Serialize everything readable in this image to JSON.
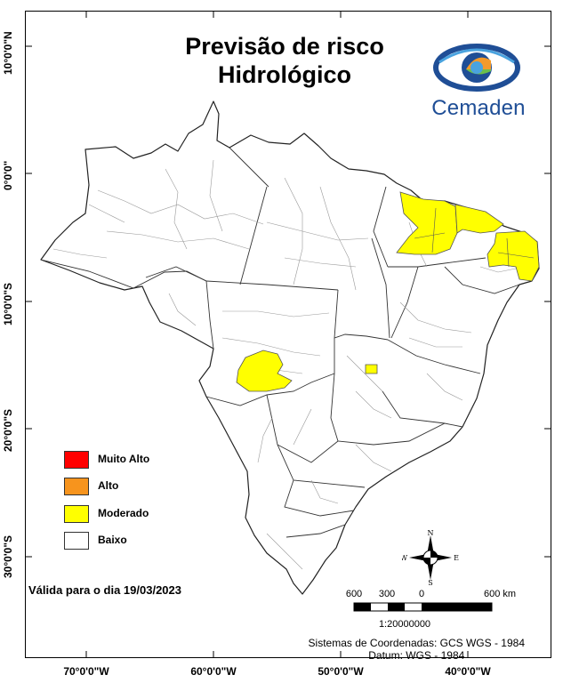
{
  "title": {
    "line1": "Previsão de risco",
    "line2": "Hidrológico"
  },
  "logo": {
    "text": "Cemaden",
    "colors": [
      "#1f4e96",
      "#4aa3df",
      "#6cbf4b",
      "#f39a2b"
    ]
  },
  "axes": {
    "latitude_labels": [
      "10°0'0\"N",
      "0°0'0\"",
      "10°0'0\"S",
      "20°0'0\"S",
      "30°0'0\"S"
    ],
    "longitude_labels": [
      "70°0'0\"W",
      "60°0'0\"W",
      "50°0'0\"W",
      "40°0'0\"W"
    ]
  },
  "legend": {
    "items": [
      {
        "label": "Muito Alto",
        "color": "#ff0000"
      },
      {
        "label": "Alto",
        "color": "#f7941d"
      },
      {
        "label": "Moderado",
        "color": "#ffff00"
      },
      {
        "label": "Baixo",
        "color": "#ffffff"
      }
    ]
  },
  "valid_date": "Válida para o dia 19/03/2023",
  "north_arrow": {
    "n": "N",
    "s": "S",
    "e": "E",
    "w": "W"
  },
  "scale": {
    "labels": [
      "600",
      "300",
      "0",
      "600 km"
    ],
    "ratio": "1:20000000"
  },
  "coordinate_system": {
    "line1": "Sistemas de Coordenadas: GCS WGS - 1984",
    "line2": "Datum: WGS - 1984"
  },
  "map": {
    "base_fill": "#ffffff",
    "highlight_color": "#ffff00",
    "moderate_risk_areas": [
      "Maranhão/Piauí",
      "Ceará",
      "Rio Grande do Norte/Paraíba",
      "Mato Grosso",
      "Goiás"
    ]
  }
}
